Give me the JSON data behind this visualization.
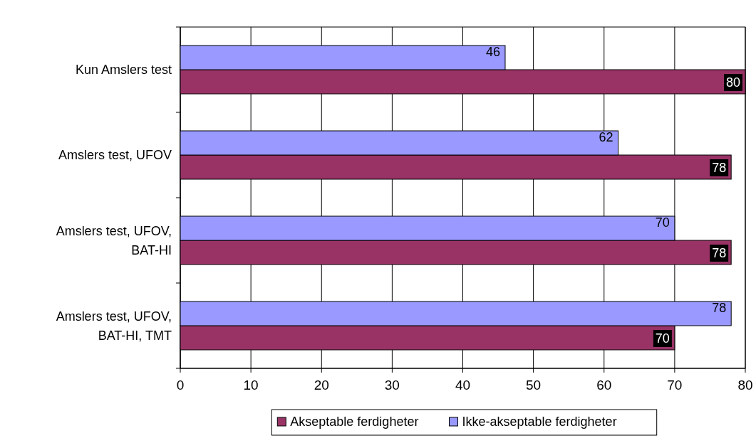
{
  "chart_data": {
    "type": "bar",
    "orientation": "horizontal",
    "categories": [
      "Kun Amslers test",
      "Amslers test, UFOV",
      "Amslers test, UFOV, BAT-HI",
      "Amslers test, UFOV, BAT-HI, TMT"
    ],
    "series": [
      {
        "name": "Akseptable ferdigheter",
        "color": "#993366",
        "values": [
          80,
          78,
          78,
          70
        ]
      },
      {
        "name": "Ikke-akseptable ferdigheter",
        "color": "#9999ff",
        "values": [
          46,
          62,
          70,
          78
        ]
      }
    ],
    "xlim": [
      0,
      80
    ],
    "xticks": [
      0,
      10,
      20,
      30,
      40,
      50,
      60,
      70,
      80
    ],
    "grid": "x",
    "legend": "bottom",
    "data_labels": true
  }
}
